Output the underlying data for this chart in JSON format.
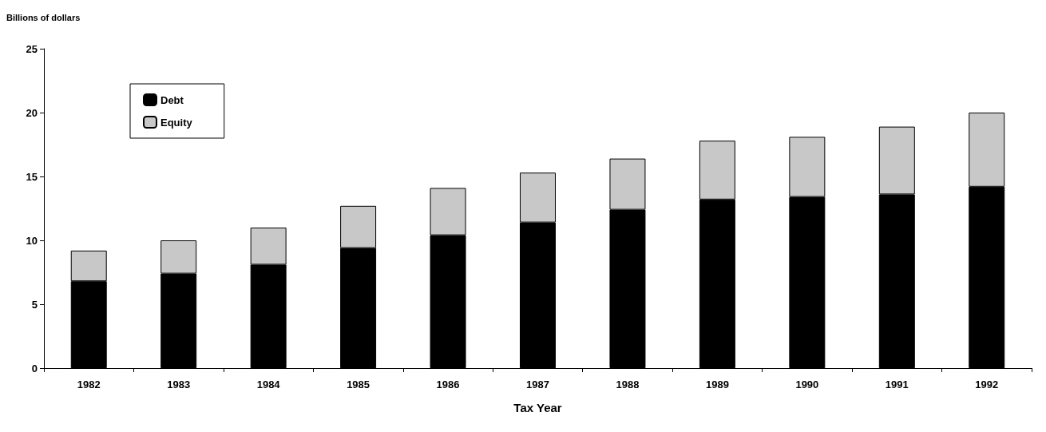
{
  "chart_data": {
    "type": "bar",
    "stacked": true,
    "ylabel": "Billions of dollars",
    "xlabel": "Tax Year",
    "categories": [
      "1982",
      "1983",
      "1984",
      "1985",
      "1986",
      "1987",
      "1988",
      "1989",
      "1990",
      "1991",
      "1992"
    ],
    "series": [
      {
        "name": "Debt",
        "color": "#000000",
        "values": [
          6.8,
          7.4,
          8.1,
          9.4,
          10.4,
          11.4,
          12.4,
          13.2,
          13.4,
          13.6,
          14.2
        ]
      },
      {
        "name": "Equity",
        "color": "#c8c8c8",
        "values": [
          2.4,
          2.6,
          2.9,
          3.3,
          3.7,
          3.9,
          4.0,
          4.6,
          4.7,
          5.3,
          5.8
        ]
      }
    ],
    "ylim": [
      0,
      25
    ],
    "yticks": [
      0,
      5,
      10,
      15,
      20,
      25
    ],
    "grid": false,
    "legend": "top left"
  }
}
